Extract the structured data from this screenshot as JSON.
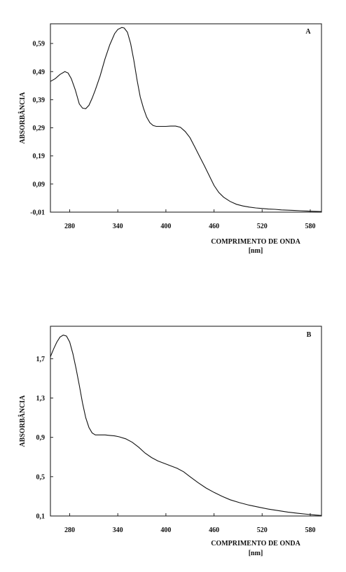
{
  "chart_data": [
    {
      "type": "line",
      "panel_label": "A",
      "xlabel": "COMPRIMENTO DE ONDA",
      "xunit": "[nm]",
      "ylabel": "ABSORBÂNCIA",
      "xlim": [
        256,
        594
      ],
      "ylim": [
        -0.01,
        0.66
      ],
      "xticks": [
        280,
        340,
        400,
        460,
        520,
        580
      ],
      "yticks": [
        -0.01,
        0.09,
        0.19,
        0.29,
        0.39,
        0.49,
        0.59
      ],
      "ytick_labels": [
        "-0,01",
        "0,09",
        "0,19",
        "0,29",
        "0,39",
        "0,49",
        "0,59"
      ],
      "series": [
        {
          "x": [
            256,
            262,
            268,
            274,
            278,
            282,
            287,
            292,
            296,
            300,
            304,
            308,
            312,
            318,
            324,
            330,
            336,
            340,
            345,
            348,
            352,
            356,
            360,
            364,
            368,
            372,
            376,
            380,
            384,
            388,
            392,
            396,
            400,
            406,
            412,
            418,
            424,
            430,
            436,
            442,
            448,
            454,
            460,
            466,
            472,
            480,
            488,
            496,
            504,
            512,
            520,
            528,
            536,
            544,
            552,
            560,
            568,
            576,
            584,
            594
          ],
          "y": [
            0.455,
            0.465,
            0.48,
            0.49,
            0.485,
            0.465,
            0.425,
            0.375,
            0.36,
            0.358,
            0.37,
            0.395,
            0.425,
            0.475,
            0.535,
            0.585,
            0.625,
            0.64,
            0.647,
            0.645,
            0.63,
            0.59,
            0.53,
            0.46,
            0.4,
            0.36,
            0.328,
            0.308,
            0.298,
            0.295,
            0.295,
            0.295,
            0.295,
            0.296,
            0.296,
            0.292,
            0.277,
            0.255,
            0.222,
            0.188,
            0.155,
            0.12,
            0.085,
            0.06,
            0.043,
            0.028,
            0.018,
            0.012,
            0.008,
            0.005,
            0.003,
            0.001,
            0.0,
            -0.002,
            -0.003,
            -0.004,
            -0.005,
            -0.006,
            -0.007,
            -0.008
          ]
        }
      ]
    },
    {
      "type": "line",
      "panel_label": "B",
      "xlabel": "COMPRIMENTO DE ONDA",
      "xunit": "[nm]",
      "ylabel": "ABSORBÂNCIA",
      "xlim": [
        256,
        594
      ],
      "ylim": [
        0.1,
        2.03
      ],
      "xticks": [
        280,
        340,
        400,
        460,
        520,
        580
      ],
      "yticks": [
        0.1,
        0.5,
        0.9,
        1.3,
        1.7
      ],
      "ytick_labels": [
        "0,1",
        "0,5",
        "0,9",
        "1,3",
        "1,7"
      ],
      "series": [
        {
          "x": [
            256,
            260,
            264,
            268,
            272,
            276,
            280,
            284,
            288,
            292,
            296,
            300,
            304,
            308,
            312,
            318,
            324,
            330,
            336,
            342,
            350,
            358,
            366,
            374,
            382,
            390,
            398,
            406,
            414,
            422,
            430,
            440,
            450,
            460,
            470,
            480,
            492,
            504,
            516,
            528,
            540,
            552,
            564,
            576,
            586,
            594
          ],
          "y": [
            1.72,
            1.8,
            1.87,
            1.92,
            1.94,
            1.93,
            1.87,
            1.75,
            1.6,
            1.43,
            1.25,
            1.1,
            1.0,
            0.945,
            0.925,
            0.925,
            0.925,
            0.92,
            0.915,
            0.905,
            0.885,
            0.85,
            0.8,
            0.74,
            0.695,
            0.66,
            0.635,
            0.61,
            0.585,
            0.55,
            0.5,
            0.44,
            0.385,
            0.34,
            0.3,
            0.265,
            0.235,
            0.21,
            0.19,
            0.17,
            0.155,
            0.14,
            0.128,
            0.118,
            0.11,
            0.105
          ]
        }
      ]
    }
  ]
}
